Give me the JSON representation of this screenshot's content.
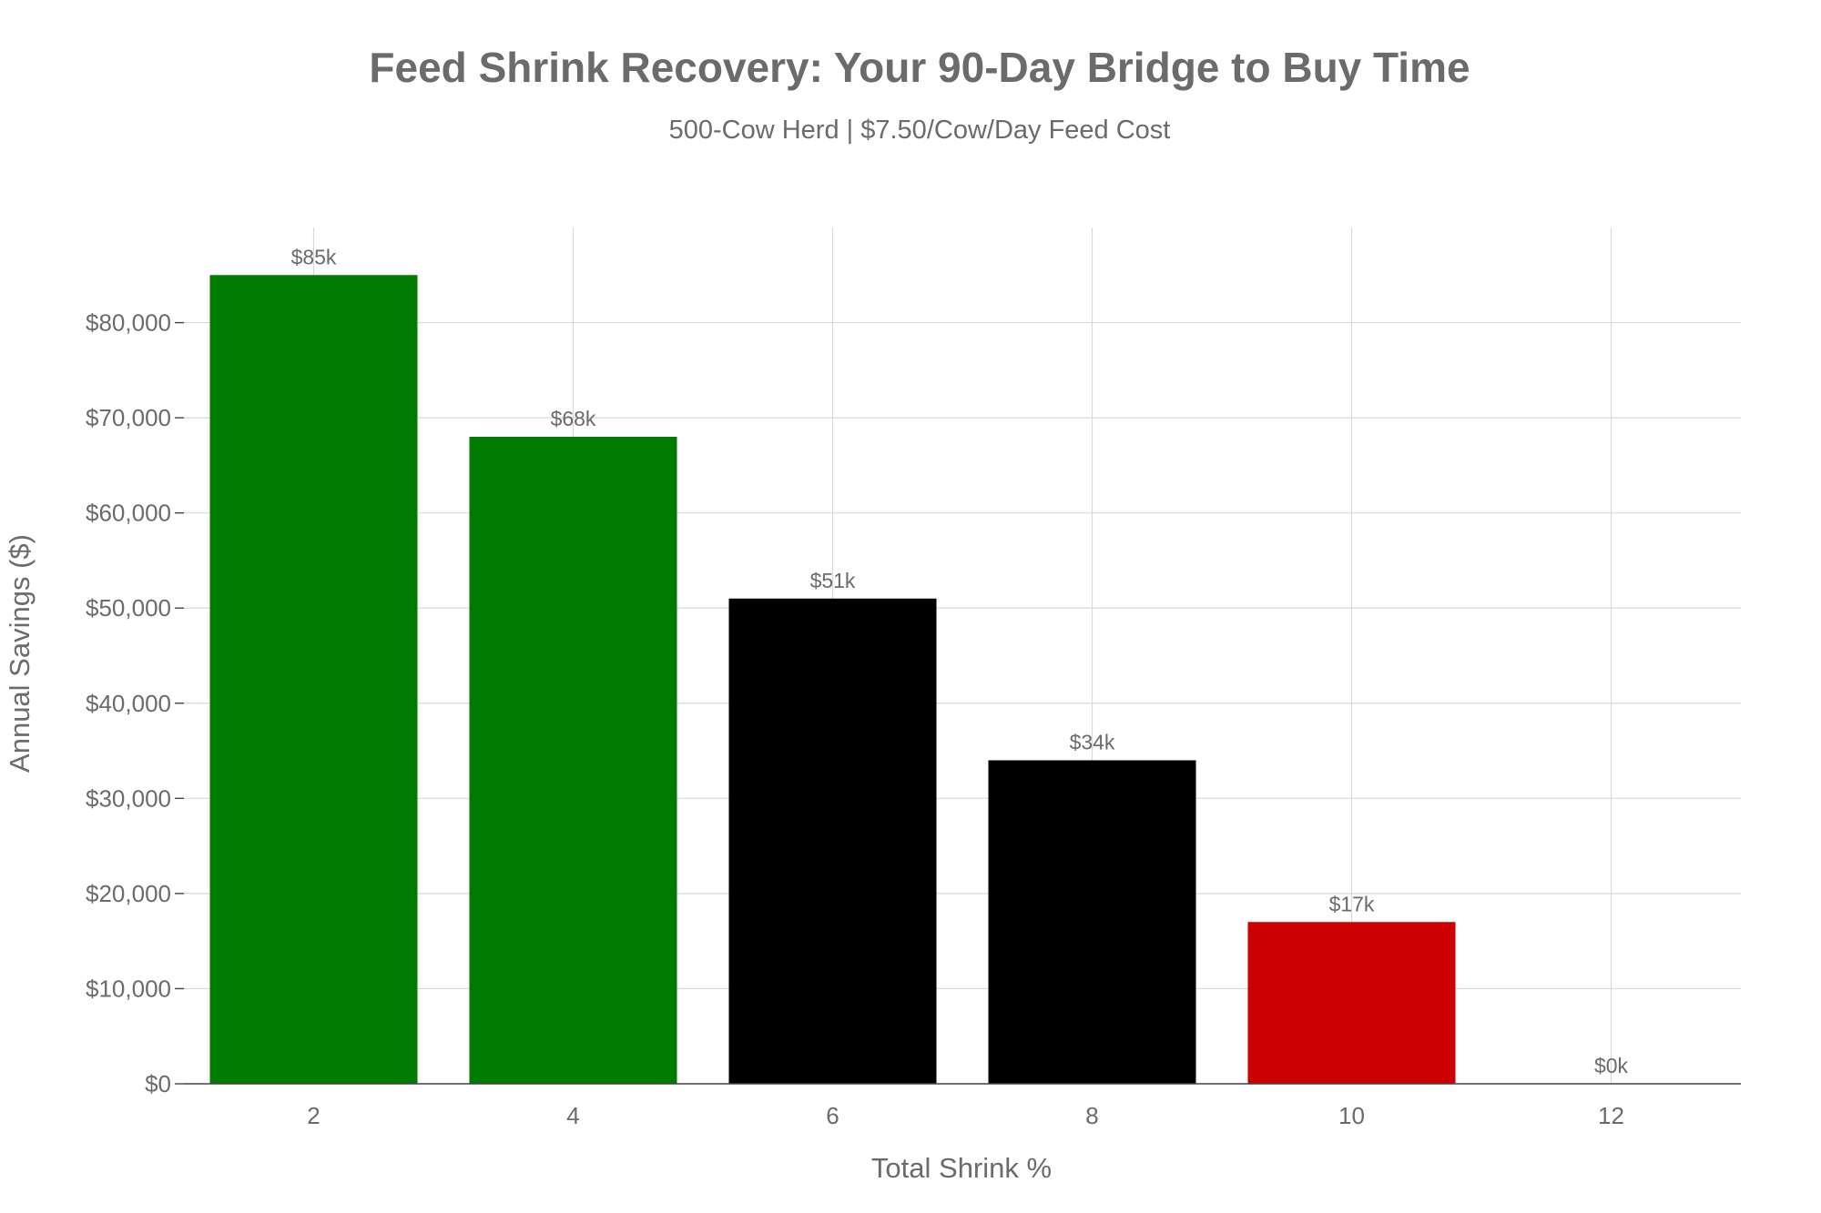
{
  "chart_data": {
    "type": "bar",
    "title": "Feed Shrink Recovery: Your 90-Day Bridge to Buy Time",
    "subtitle": "500-Cow Herd | $7.50/Cow/Day Feed Cost",
    "xlabel": "Total Shrink %",
    "ylabel": "Annual Savings ($)",
    "x": [
      2,
      4,
      6,
      8,
      10,
      12
    ],
    "values": [
      85000,
      68000,
      51000,
      34000,
      17000,
      0
    ],
    "data_labels": [
      "$85k",
      "$68k",
      "$51k",
      "$34k",
      "$17k",
      "$0k"
    ],
    "bar_colors": [
      "#007a00",
      "#007a00",
      "#000000",
      "#000000",
      "#cc0000",
      "#cc0000"
    ],
    "xlim": [
      1,
      13
    ],
    "ylim": [
      0,
      90000
    ],
    "x_ticks": [
      2,
      4,
      6,
      8,
      10,
      12
    ],
    "x_tick_labels": [
      "2",
      "4",
      "6",
      "8",
      "10",
      "12"
    ],
    "y_ticks": [
      0,
      10000,
      20000,
      30000,
      40000,
      50000,
      60000,
      70000,
      80000
    ],
    "y_tick_labels": [
      "$0",
      "$10,000",
      "$20,000",
      "$30,000",
      "$40,000",
      "$50,000",
      "$60,000",
      "$70,000",
      "$80,000"
    ],
    "bar_width": 1.6,
    "grid": true,
    "legend": "none"
  }
}
